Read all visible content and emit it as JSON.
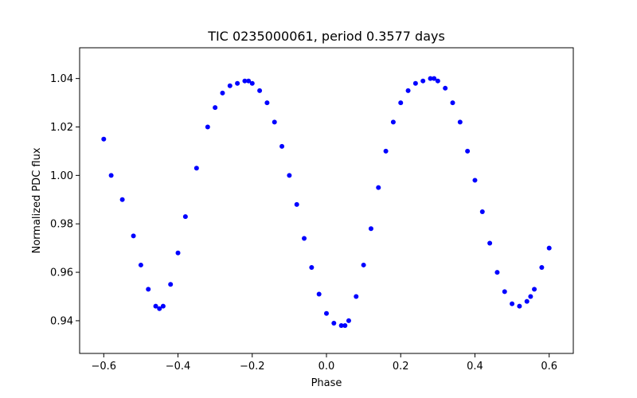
{
  "chart_data": {
    "type": "scatter",
    "title": "TIC 0235000061, period 0.3577 days",
    "xlabel": "Phase",
    "ylabel": "Normalized PDC flux",
    "xlim": [
      -0.665,
      0.665
    ],
    "ylim": [
      0.9265,
      1.0527
    ],
    "x_ticks": [
      -0.6,
      -0.4,
      -0.2,
      0.0,
      0.2,
      0.4,
      0.6
    ],
    "x_tick_labels": [
      "−0.6",
      "−0.4",
      "−0.2",
      "0.0",
      "0.2",
      "0.4",
      "0.6"
    ],
    "y_ticks": [
      0.94,
      0.96,
      0.98,
      1.0,
      1.02,
      1.04
    ],
    "y_tick_labels": [
      "0.94",
      "0.96",
      "0.98",
      "1.00",
      "1.02",
      "1.04"
    ],
    "grid": false,
    "legend": "none",
    "marker_color": "#0000ff",
    "series": [
      {
        "x": [
          -0.6,
          -0.58,
          -0.55,
          -0.52,
          -0.5,
          -0.48,
          -0.46,
          -0.45,
          -0.44,
          -0.42,
          -0.4,
          -0.38,
          -0.35,
          -0.32,
          -0.3,
          -0.28,
          -0.26,
          -0.24,
          -0.22,
          -0.21,
          -0.2,
          -0.18,
          -0.16,
          -0.14,
          -0.12,
          -0.1,
          -0.08,
          -0.06,
          -0.04,
          -0.02,
          0.0,
          0.02,
          0.04,
          0.05,
          0.06,
          0.08,
          0.1,
          0.12,
          0.14,
          0.16,
          0.18,
          0.2,
          0.22,
          0.24,
          0.26,
          0.28,
          0.29,
          0.3,
          0.32,
          0.34,
          0.36,
          0.38,
          0.4,
          0.42,
          0.44,
          0.46,
          0.48,
          0.5,
          0.52,
          0.54,
          0.55,
          0.56,
          0.58,
          0.6
        ],
        "y": [
          1.015,
          1.0,
          0.99,
          0.975,
          0.963,
          0.953,
          0.946,
          0.945,
          0.946,
          0.955,
          0.968,
          0.983,
          1.003,
          1.02,
          1.028,
          1.034,
          1.037,
          1.038,
          1.039,
          1.039,
          1.038,
          1.035,
          1.03,
          1.022,
          1.012,
          1.0,
          0.988,
          0.974,
          0.962,
          0.951,
          0.943,
          0.939,
          0.938,
          0.938,
          0.94,
          0.95,
          0.963,
          0.978,
          0.995,
          1.01,
          1.022,
          1.03,
          1.035,
          1.038,
          1.039,
          1.04,
          1.04,
          1.039,
          1.036,
          1.03,
          1.022,
          1.01,
          0.998,
          0.985,
          0.972,
          0.96,
          0.952,
          0.947,
          0.946,
          0.948,
          0.95,
          0.953,
          0.962,
          0.97
        ]
      }
    ]
  }
}
